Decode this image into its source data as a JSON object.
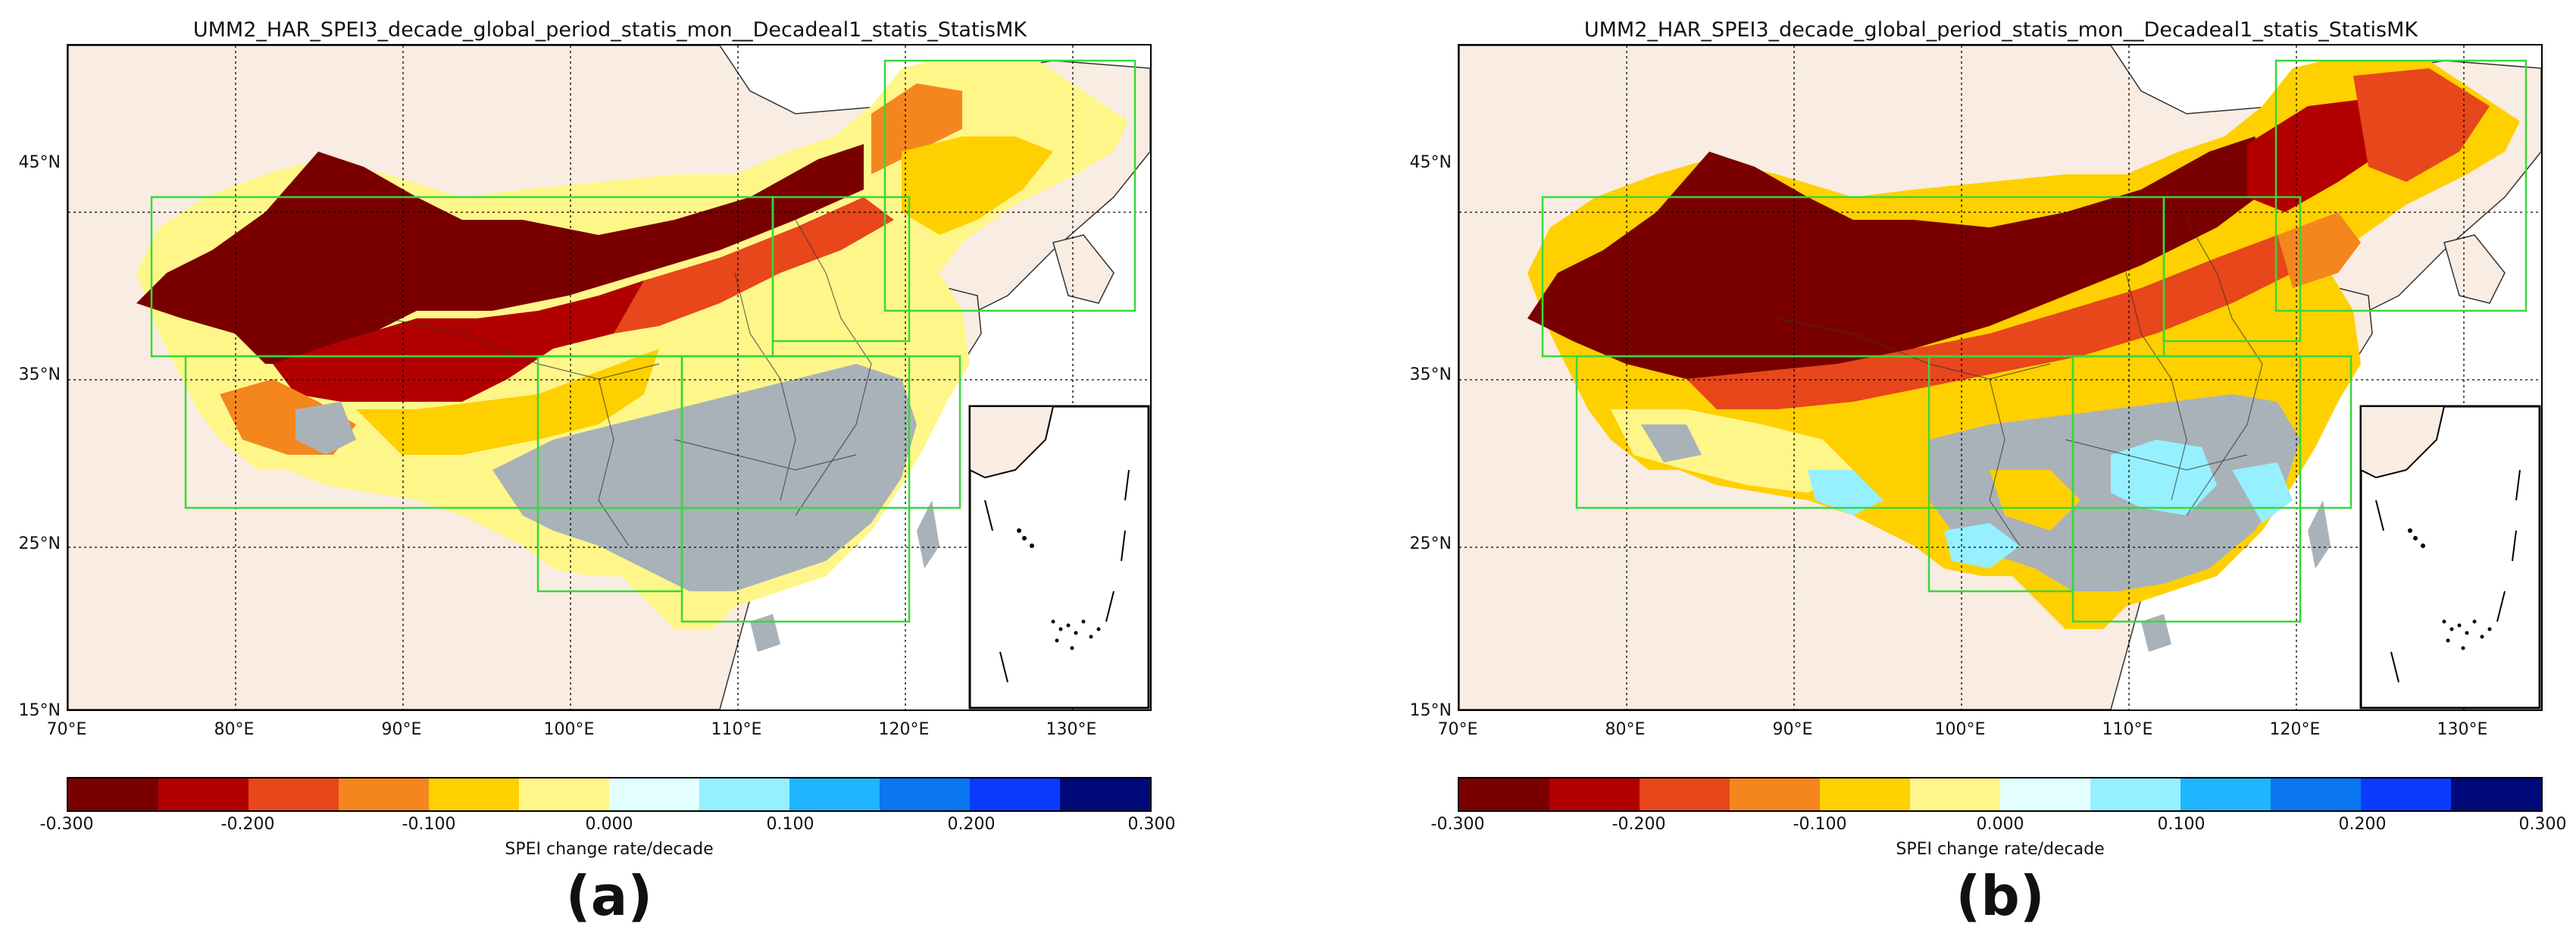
{
  "panels": [
    {
      "id": "a",
      "title": "UMM2_HAR_SPEI3_decade_global_period_statis_mon__Decadeal1_statis_StatisMK",
      "label": "(a)",
      "ticks": {
        "lat": [
          "45°N",
          "35°N",
          "25°N",
          "15°N"
        ],
        "lon": [
          "70°E",
          "80°E",
          "90°E",
          "100°E",
          "110°E",
          "120°E",
          "130°E"
        ]
      },
      "colorbar": {
        "label": "SPEI change rate/decade",
        "ticks": [
          "-0.300",
          "-0.200",
          "-0.100",
          "0.000",
          "0.100",
          "0.200",
          "0.300"
        ]
      }
    },
    {
      "id": "b",
      "title": "UMM2_HAR_SPEI3_decade_global_period_statis_mon__Decadeal1_statis_StatisMK",
      "label": "(b)",
      "ticks": {
        "lat": [
          "45°N",
          "35°N",
          "25°N",
          "15°N"
        ],
        "lon": [
          "70°E",
          "80°E",
          "90°E",
          "100°E",
          "110°E",
          "120°E",
          "130°E"
        ]
      },
      "colorbar": {
        "label": "SPEI change rate/decade",
        "ticks": [
          "-0.300",
          "-0.200",
          "-0.100",
          "0.000",
          "0.100",
          "0.200",
          "0.300"
        ]
      }
    }
  ],
  "colorbar_colors": [
    "#7a0000",
    "#b20000",
    "#e8461b",
    "#f5861e",
    "#ffd000",
    "#fff68a",
    "#e3ffff",
    "#96f0ff",
    "#1fb5ff",
    "#0a76f0",
    "#0a3bff",
    "#00097a"
  ],
  "map_colors": {
    "ocean": "#ffffff",
    "land": "#f9ece2",
    "grid": "#000000",
    "box": "#36d93a",
    "strong_dry": "#7a0000",
    "dry": "#b20000",
    "orange": "#e8461b",
    "light_orange": "#f5861e",
    "yellow": "#ffd000",
    "pale_yellow": "#fff68a",
    "gray": "#a9b2b8",
    "cyan": "#96f0ff"
  }
}
